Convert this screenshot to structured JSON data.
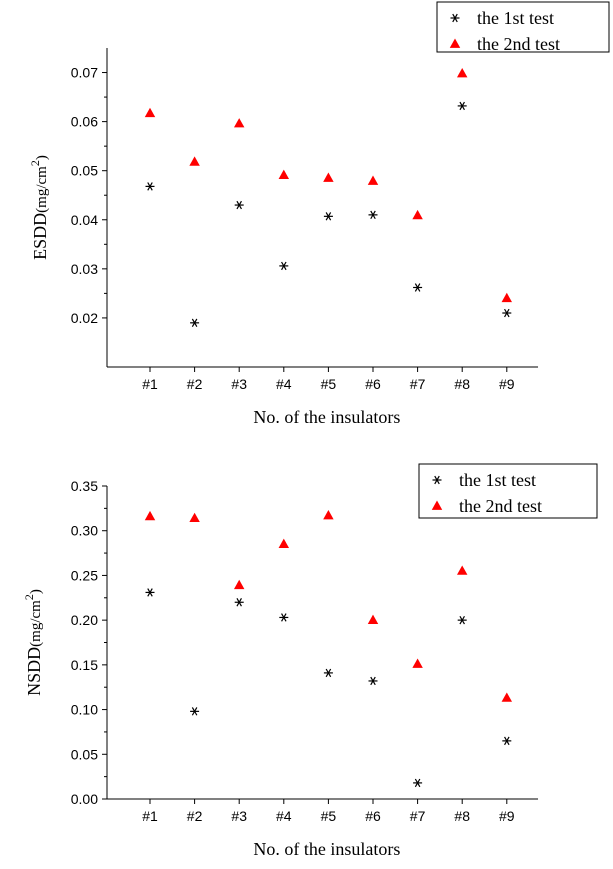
{
  "chart_data": [
    {
      "type": "scatter",
      "categories": [
        "#1",
        "#2",
        "#3",
        "#4",
        "#5",
        "#6",
        "#7",
        "#8",
        "#9"
      ],
      "xlabel": "No. of the insulators",
      "ylabel_main": "ESDD",
      "ylabel_unit": "(mg/cm",
      "ylabel_sup": "2",
      "ylabel_close": ")",
      "ylim": [
        0.01,
        0.075
      ],
      "yticks": [
        "0.02",
        "0.03",
        "0.04",
        "0.05",
        "0.06",
        "0.07"
      ],
      "legend_position": "top-right",
      "series": [
        {
          "name": "the 1st test",
          "marker": "asterisk",
          "color": "#000000",
          "values": [
            0.0468,
            0.019,
            0.043,
            0.0306,
            0.0407,
            0.041,
            0.0262,
            0.0632,
            0.021
          ]
        },
        {
          "name": "the 2nd test",
          "marker": "triangle",
          "color": "#ff0000",
          "values": [
            0.0617,
            0.0518,
            0.0596,
            0.0491,
            0.0485,
            0.0479,
            0.0409,
            0.0698,
            0.024
          ]
        }
      ]
    },
    {
      "type": "scatter",
      "categories": [
        "#1",
        "#2",
        "#3",
        "#4",
        "#5",
        "#6",
        "#7",
        "#8",
        "#9"
      ],
      "xlabel": "No. of the insulators",
      "ylabel_main": "NSDD",
      "ylabel_unit": "(mg/cm",
      "ylabel_sup": "2",
      "ylabel_close": ")",
      "ylim": [
        0.0,
        0.35
      ],
      "yticks": [
        "0.00",
        "0.05",
        "0.10",
        "0.15",
        "0.20",
        "0.25",
        "0.30",
        "0.35"
      ],
      "legend_position": "top-right",
      "series": [
        {
          "name": "the 1st test",
          "marker": "asterisk",
          "color": "#000000",
          "values": [
            0.231,
            0.098,
            0.22,
            0.203,
            0.141,
            0.132,
            0.018,
            0.2,
            0.065
          ]
        },
        {
          "name": "the 2nd test",
          "marker": "triangle",
          "color": "#ff0000",
          "values": [
            0.316,
            0.314,
            0.239,
            0.285,
            0.317,
            0.2,
            0.151,
            0.255,
            0.113
          ]
        }
      ]
    }
  ]
}
